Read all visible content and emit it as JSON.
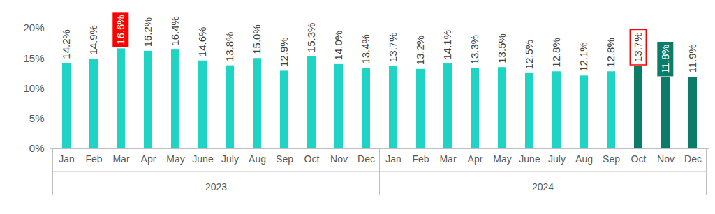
{
  "chart_data": {
    "type": "bar",
    "categories": [
      "Jan",
      "Feb",
      "Mar",
      "Apr",
      "May",
      "June",
      "July",
      "Aug",
      "Sep",
      "Oct",
      "Nov",
      "Dec",
      "Jan",
      "Feb",
      "Mar",
      "Apr",
      "May",
      "June",
      "July",
      "Aug",
      "Sep",
      "Oct",
      "Nov",
      "Dec"
    ],
    "category_groups": [
      "2023",
      "2023",
      "2023",
      "2023",
      "2023",
      "2023",
      "2023",
      "2023",
      "2023",
      "2023",
      "2023",
      "2023",
      "2024",
      "2024",
      "2024",
      "2024",
      "2024",
      "2024",
      "2024",
      "2024",
      "2024",
      "2024",
      "2024",
      "2024"
    ],
    "values": [
      14.2,
      14.9,
      16.6,
      16.2,
      16.4,
      14.6,
      13.8,
      15.0,
      12.9,
      15.3,
      14.0,
      13.4,
      13.7,
      13.2,
      14.1,
      13.3,
      13.5,
      12.5,
      12.8,
      12.1,
      12.8,
      13.7,
      11.8,
      11.9
    ],
    "value_labels": [
      "14.2%",
      "14.9%",
      "16.6%",
      "16.2%",
      "16.4%",
      "14.6%",
      "13.8%",
      "15.0%",
      "12.9%",
      "15.3%",
      "14.0%",
      "13.4%",
      "13.7%",
      "13.2%",
      "14.1%",
      "13.3%",
      "13.5%",
      "12.5%",
      "12.8%",
      "12.1%",
      "12.8%",
      "13.7%",
      "11.8%",
      "11.9%"
    ],
    "colors": [
      "#1ed4c4",
      "#1ed4c4",
      "#1ed4c4",
      "#1ed4c4",
      "#1ed4c4",
      "#1ed4c4",
      "#1ed4c4",
      "#1ed4c4",
      "#1ed4c4",
      "#1ed4c4",
      "#1ed4c4",
      "#1ed4c4",
      "#1ed4c4",
      "#1ed4c4",
      "#1ed4c4",
      "#1ed4c4",
      "#1ed4c4",
      "#1ed4c4",
      "#1ed4c4",
      "#1ed4c4",
      "#1ed4c4",
      "#0c7c68",
      "#0c7c68",
      "#0c7c68"
    ],
    "ylim": [
      0,
      20
    ],
    "yticks": [
      {
        "value": 0,
        "label": "0%"
      },
      {
        "value": 5,
        "label": "5%"
      },
      {
        "value": 10,
        "label": "10%"
      },
      {
        "value": 15,
        "label": "15%"
      },
      {
        "value": 20,
        "label": "20%"
      }
    ],
    "grid": false,
    "data_labels": true
  }
}
